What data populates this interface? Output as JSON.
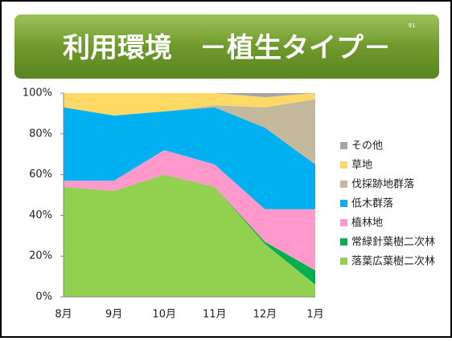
{
  "slide_number": "91",
  "chart_data": {
    "type": "stacked_area",
    "title": "利用環境　－植生タイプ－",
    "categories": [
      "8月",
      "9月",
      "10月",
      "11月",
      "12月",
      "1月"
    ],
    "series": [
      {
        "name": "落葉広葉樹二次林",
        "color": "#92d050",
        "values": [
          54,
          52,
          60,
          54,
          26,
          6
        ]
      },
      {
        "name": "常緑針葉樹二次林",
        "color": "#00b050",
        "values": [
          0,
          0,
          0,
          0,
          1,
          7
        ]
      },
      {
        "name": "植林地",
        "color": "#ff99cc",
        "values": [
          3,
          5,
          12,
          11,
          16,
          30
        ]
      },
      {
        "name": "低木群落",
        "color": "#00b0f0",
        "values": [
          36,
          32,
          19,
          28,
          40,
          22
        ]
      },
      {
        "name": "伐採跡地群落",
        "color": "#c4b99d",
        "values": [
          0,
          0,
          0,
          1,
          10,
          32
        ]
      },
      {
        "name": "草地",
        "color": "#ffd966",
        "values": [
          7,
          11,
          9,
          6,
          5,
          3
        ]
      },
      {
        "name": "その他",
        "color": "#a6a6a6",
        "values": [
          0,
          0,
          0,
          0,
          2,
          0
        ]
      }
    ],
    "ylim": [
      0,
      100
    ],
    "yticks": [
      {
        "value": 0,
        "label": "0%"
      },
      {
        "value": 20,
        "label": "20%"
      },
      {
        "value": 40,
        "label": "40%"
      },
      {
        "value": 60,
        "label": "60%"
      },
      {
        "value": 80,
        "label": "80%"
      },
      {
        "value": 100,
        "label": "100%"
      }
    ],
    "legend": "right"
  }
}
